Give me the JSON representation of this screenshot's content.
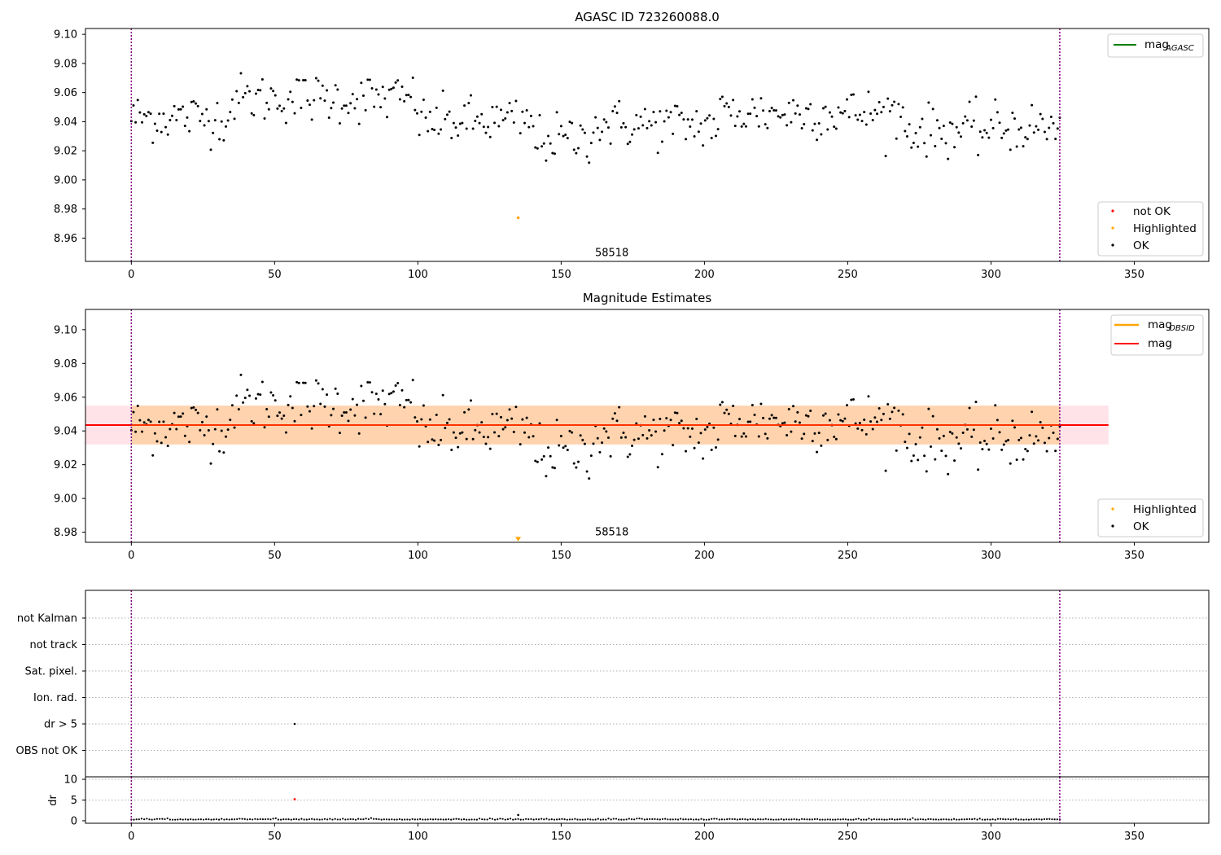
{
  "chart_data": [
    {
      "type": "scatter",
      "title": "AGASC ID 723260088.0",
      "xlim": [
        -16,
        376
      ],
      "ylim": [
        8.944,
        9.104
      ],
      "xticks": [
        0,
        50,
        100,
        150,
        200,
        250,
        300,
        350
      ],
      "yticks": [
        8.96,
        8.98,
        9.0,
        9.02,
        9.04,
        9.06,
        9.08,
        9.1
      ],
      "ytick_labels": [
        "8.96",
        "8.98",
        "9.00",
        "9.02",
        "9.04",
        "9.06",
        "9.08",
        "9.10"
      ],
      "vlines": [
        0,
        324
      ],
      "annotation": {
        "text": "58518",
        "x": 162,
        "y": 8.95
      },
      "line_legend": [
        {
          "name": "mag",
          "subscript": "AGASC",
          "color": "#008000"
        }
      ],
      "marker_legend": [
        {
          "name": "not OK",
          "color": "#ff0000"
        },
        {
          "name": "Highlighted",
          "color": "#ffa500"
        },
        {
          "name": "OK",
          "color": "#000000"
        }
      ],
      "highlighted": [
        {
          "x": 135,
          "y": 8.974
        }
      ]
    },
    {
      "type": "scatter",
      "title": "Magnitude Estimates",
      "xlim": [
        -16,
        376
      ],
      "ylim": [
        8.974,
        9.112
      ],
      "xticks": [
        0,
        50,
        100,
        150,
        200,
        250,
        300,
        350
      ],
      "yticks": [
        8.98,
        9.0,
        9.02,
        9.04,
        9.06,
        9.08,
        9.1
      ],
      "ytick_labels": [
        "8.98",
        "9.00",
        "9.02",
        "9.04",
        "9.06",
        "9.08",
        "9.10"
      ],
      "vlines": [
        0,
        324
      ],
      "annotation": {
        "text": "58518",
        "x": 162,
        "y": 8.979
      },
      "mag_line": {
        "value": 9.0435,
        "x_range": [
          -16,
          341
        ],
        "color": "#ff0000"
      },
      "mag_obsid_band": {
        "low": 9.032,
        "high": 9.055,
        "x_range": [
          0,
          324
        ],
        "color": "#ffa500"
      },
      "mag_band": {
        "low": 9.032,
        "high": 9.055,
        "x_range": [
          -16,
          341
        ],
        "color": "#ffc0cb"
      },
      "line_legend": [
        {
          "name": "mag",
          "subscript": "OBSID",
          "color": "#ffa500"
        },
        {
          "name": "mag",
          "subscript": "",
          "color": "#ff0000"
        }
      ],
      "marker_legend": [
        {
          "name": "Highlighted",
          "color": "#ffa500"
        },
        {
          "name": "OK",
          "color": "#000000"
        }
      ],
      "highlighted_triangle": {
        "x": 135,
        "y": 8.976
      }
    },
    {
      "type": "scatter",
      "categories": [
        "not Kalman",
        "not track",
        "Sat. pixel.",
        "Ion. rad.",
        "dr > 5",
        "OBS not OK"
      ],
      "xlim": [
        -16,
        376
      ],
      "vlines": [
        0,
        324
      ],
      "flag_points": [
        {
          "x": 57,
          "category": "dr > 5"
        }
      ]
    },
    {
      "type": "scatter",
      "ylabel": "dr",
      "xlim": [
        -16,
        376
      ],
      "ylim": [
        -0.6,
        10.6
      ],
      "yticks": [
        0,
        5,
        10
      ],
      "xticks": [
        0,
        50,
        100,
        150,
        200,
        250,
        300,
        350
      ],
      "vlines": [
        0,
        324
      ],
      "flagged_points": [
        {
          "x": 57,
          "y": 5.2
        }
      ],
      "dr_peak": {
        "x": 135,
        "y": 1.4
      }
    }
  ]
}
